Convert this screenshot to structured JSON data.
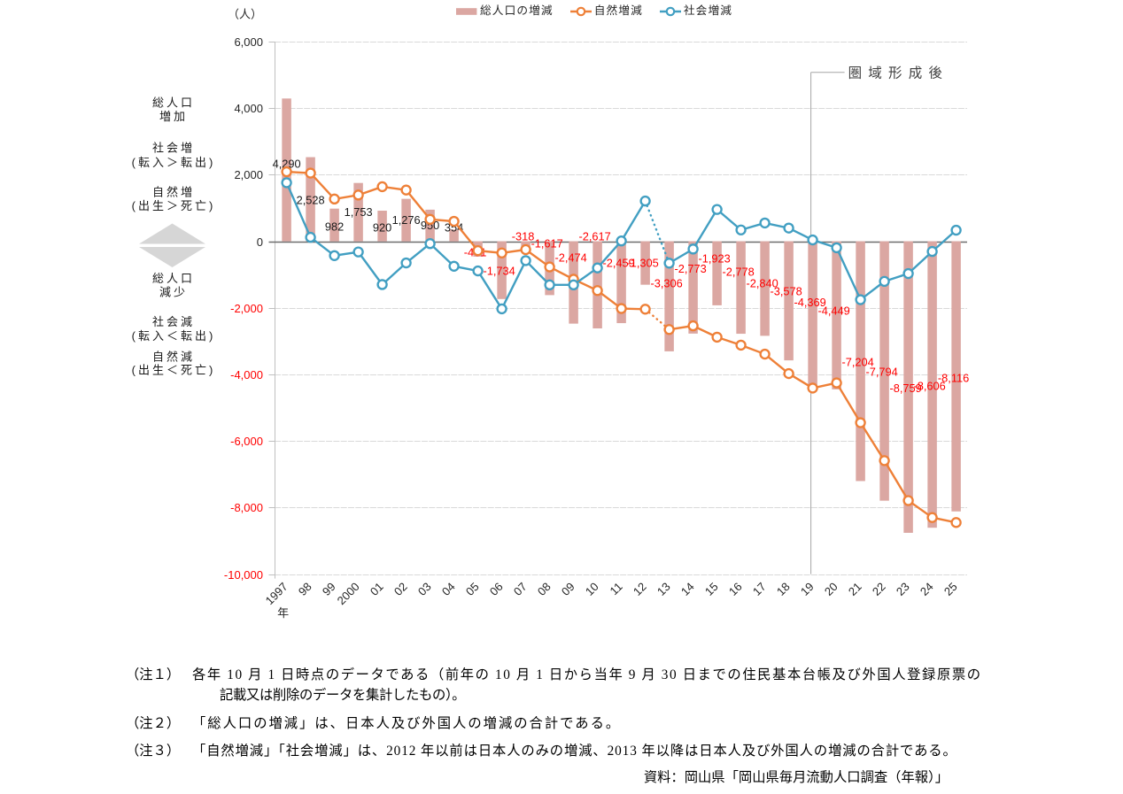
{
  "chart_data": {
    "type": "bar+line combo",
    "title": "",
    "unit_label": "（人）",
    "categories": [
      "1997",
      "98",
      "99",
      "2000",
      "01",
      "02",
      "03",
      "04",
      "05",
      "06",
      "07",
      "08",
      "09",
      "10",
      "11",
      "12",
      "13",
      "14",
      "15",
      "16",
      "17",
      "18",
      "19",
      "20",
      "21",
      "22",
      "23",
      "24",
      "25"
    ],
    "first_category_suffix": "年",
    "series": [
      {
        "name": "総人口の増減",
        "type": "bar",
        "color": "#DBA7A2",
        "values": [
          4290,
          2528,
          982,
          1753,
          920,
          1276,
          950,
          354,
          -461,
          -1734,
          -318,
          -1617,
          -2474,
          -2617,
          -2459,
          -1305,
          -3306,
          -2773,
          -1923,
          -2778,
          -2840,
          -3578,
          -4369,
          -4449,
          -7204,
          -7794,
          -8759,
          -8606,
          -8116
        ],
        "labels": [
          "4,290",
          "2,528",
          "982",
          "1,753",
          "920",
          "1,276",
          "950",
          "354",
          "-461",
          "-1,734",
          "-318",
          "-1,617",
          "-2,474",
          "-2,617",
          "-2,459",
          "-1,305",
          "-3,306",
          "-2,773",
          "-1,923",
          "-2,778",
          "-2,840",
          "-3,578",
          "-4,369",
          "-4,449",
          "-7,204",
          "-7,794",
          "-8,759",
          "-8,606",
          "-8,116"
        ],
        "label_color_positive": "#1a1a1a",
        "label_color_negative": "#ff0000"
      },
      {
        "name": "自然増減",
        "type": "line",
        "color": "#EE8038",
        "marker": "circle-open",
        "values": [
          2090,
          2050,
          1270,
          1390,
          1640,
          1540,
          660,
          600,
          -280,
          -350,
          -250,
          -770,
          -1140,
          -1480,
          -2020,
          -2040,
          -2650,
          -2540,
          -2880,
          -3120,
          -3390,
          -3975,
          -4410,
          -4255,
          -5450,
          -6590,
          -7790,
          -8300,
          -8450
        ],
        "dotted_segment_between": [
          "12",
          "13"
        ]
      },
      {
        "name": "社会増減",
        "type": "line",
        "color": "#429FC2",
        "marker": "circle-open",
        "values": [
          1760,
          120,
          -430,
          -320,
          -1300,
          -650,
          -70,
          -750,
          -890,
          -2030,
          -580,
          -1310,
          -1310,
          -800,
          10,
          1210,
          -656,
          -233,
          957,
          342,
          550,
          397,
          41,
          -194,
          -1754,
          -1204,
          -969,
          -306,
          334
        ],
        "dotted_segment_between": [
          "12",
          "13"
        ]
      }
    ],
    "y_axis": {
      "min": -10000,
      "max": 6000,
      "step": 2000,
      "tick_labels": [
        "6,000",
        "4,000",
        "2,000",
        "0",
        "-2,000",
        "-4,000",
        "-6,000",
        "-8,000",
        "-10,000"
      ],
      "positive_color": "#262626",
      "negative_color": "#ff0000",
      "grid": true
    },
    "annotation": {
      "label": "圏域形成後",
      "at_category": "19"
    },
    "left_axis_captions": [
      {
        "lines": [
          "総人口",
          "増加"
        ]
      },
      {
        "lines": [
          "社会増",
          "(転入＞転出)"
        ]
      },
      {
        "lines": [
          "自然増",
          "(出生＞死亡)"
        ]
      },
      {
        "lines": [
          "総人口",
          "減少"
        ]
      },
      {
        "lines": [
          "社会減",
          "(転入＜転出)"
        ]
      },
      {
        "lines": [
          "自然減",
          "(出生＜死亡)"
        ]
      }
    ],
    "legend_position": "top-center"
  },
  "legend": {
    "items": [
      {
        "label": "総人口の増減",
        "swatch": "bar",
        "color": "#DBA7A2"
      },
      {
        "label": "自然増減",
        "swatch": "line-circle",
        "color": "#EE8038"
      },
      {
        "label": "社会増減",
        "swatch": "line-circle",
        "color": "#429FC2"
      }
    ]
  },
  "notes": [
    {
      "label": "（注１）",
      "lines": [
        "各年 10 月 1 日時点のデータである（前年の 10 月 1 日から当年 9 月 30 日までの住民基本台帳及び外国人登録原票の",
        "記載又は削除のデータを集計したもの）。"
      ]
    },
    {
      "label": "（注２）",
      "lines": [
        "「総人口の増減」は、日本人及び外国人の増減の合計である。"
      ]
    },
    {
      "label": "（注３）",
      "lines": [
        "「自然増減」「社会増減」は、2012 年以前は日本人のみの増減、2013 年以降は日本人及び外国人の増減の合計である。"
      ]
    }
  ],
  "source": "資料：岡山県「岡山県毎月流動人口調査（年報）」"
}
